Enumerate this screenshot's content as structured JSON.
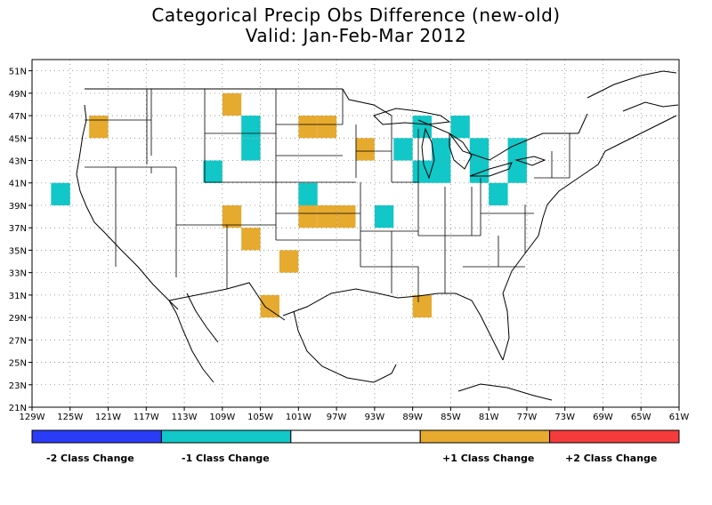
{
  "title": {
    "line1": "Categorical Precip Obs Difference (new-old)",
    "line2": "Valid: Jan-Feb-Mar 2012"
  },
  "axes": {
    "lon_labels": [
      "129W",
      "125W",
      "121W",
      "117W",
      "113W",
      "109W",
      "105W",
      "101W",
      "97W",
      "93W",
      "89W",
      "85W",
      "81W",
      "77W",
      "73W",
      "69W",
      "65W",
      "61W"
    ],
    "lon_values": [
      -129,
      -125,
      -121,
      -117,
      -113,
      -109,
      -105,
      -101,
      -97,
      -93,
      -89,
      -85,
      -81,
      -77,
      -73,
      -69,
      -65,
      -61
    ],
    "lat_labels": [
      "21N",
      "23N",
      "25N",
      "27N",
      "29N",
      "31N",
      "33N",
      "35N",
      "37N",
      "39N",
      "41N",
      "43N",
      "45N",
      "47N",
      "49N",
      "51N"
    ],
    "lat_values": [
      21,
      23,
      25,
      27,
      29,
      31,
      33,
      35,
      37,
      39,
      41,
      43,
      45,
      47,
      49,
      51
    ],
    "lon_range": [
      -129,
      -61
    ],
    "lat_range": [
      21,
      52
    ],
    "grid": "dotted"
  },
  "colors": {
    "minus2": "#2a3cf5",
    "minus1": "#11c7c7",
    "zero": "#ffffff",
    "plus1": "#e6aa2e",
    "plus2": "#f53c3c",
    "boundary": "#000000"
  },
  "legend": {
    "items": [
      {
        "label": "-2 Class Change",
        "color": "#2a3cf5"
      },
      {
        "label": "-1 Class Change",
        "color": "#11c7c7"
      },
      {
        "label": "",
        "color": "#ffffff"
      },
      {
        "label": "+1 Class Change",
        "color": "#e6aa2e"
      },
      {
        "label": "+2 Class Change",
        "color": "#f53c3c"
      }
    ]
  },
  "cells": [
    {
      "lon": -122,
      "lat": 46,
      "class": 1
    },
    {
      "lon": -108,
      "lat": 48,
      "class": 1
    },
    {
      "lon": -106,
      "lat": 46,
      "class": -1
    },
    {
      "lon": -106,
      "lat": 44,
      "class": -1
    },
    {
      "lon": -100,
      "lat": 46,
      "class": 1
    },
    {
      "lon": -98,
      "lat": 46,
      "class": 1
    },
    {
      "lon": -94,
      "lat": 44,
      "class": 1
    },
    {
      "lon": -110,
      "lat": 42,
      "class": -1
    },
    {
      "lon": -126,
      "lat": 40,
      "class": -1
    },
    {
      "lon": -108,
      "lat": 38,
      "class": 1
    },
    {
      "lon": -100,
      "lat": 40,
      "class": -1
    },
    {
      "lon": -100,
      "lat": 38,
      "class": 1
    },
    {
      "lon": -98,
      "lat": 38,
      "class": 1
    },
    {
      "lon": -96,
      "lat": 38,
      "class": 1
    },
    {
      "lon": -92,
      "lat": 38,
      "class": -1
    },
    {
      "lon": -106,
      "lat": 36,
      "class": 1
    },
    {
      "lon": -102,
      "lat": 34,
      "class": 1
    },
    {
      "lon": -104,
      "lat": 30,
      "class": 1
    },
    {
      "lon": -88,
      "lat": 30,
      "class": 1
    },
    {
      "lon": -88,
      "lat": 46,
      "class": -1
    },
    {
      "lon": -90,
      "lat": 44,
      "class": -1
    },
    {
      "lon": -86,
      "lat": 44,
      "class": -1
    },
    {
      "lon": -86,
      "lat": 42,
      "class": -1
    },
    {
      "lon": -88,
      "lat": 42,
      "class": -1
    },
    {
      "lon": -84,
      "lat": 46,
      "class": -1
    },
    {
      "lon": -82,
      "lat": 44,
      "class": -1
    },
    {
      "lon": -82,
      "lat": 42,
      "class": -1
    },
    {
      "lon": -78,
      "lat": 44,
      "class": -1
    },
    {
      "lon": -78,
      "lat": 42,
      "class": -1
    },
    {
      "lon": -80,
      "lat": 40,
      "class": -1
    }
  ]
}
